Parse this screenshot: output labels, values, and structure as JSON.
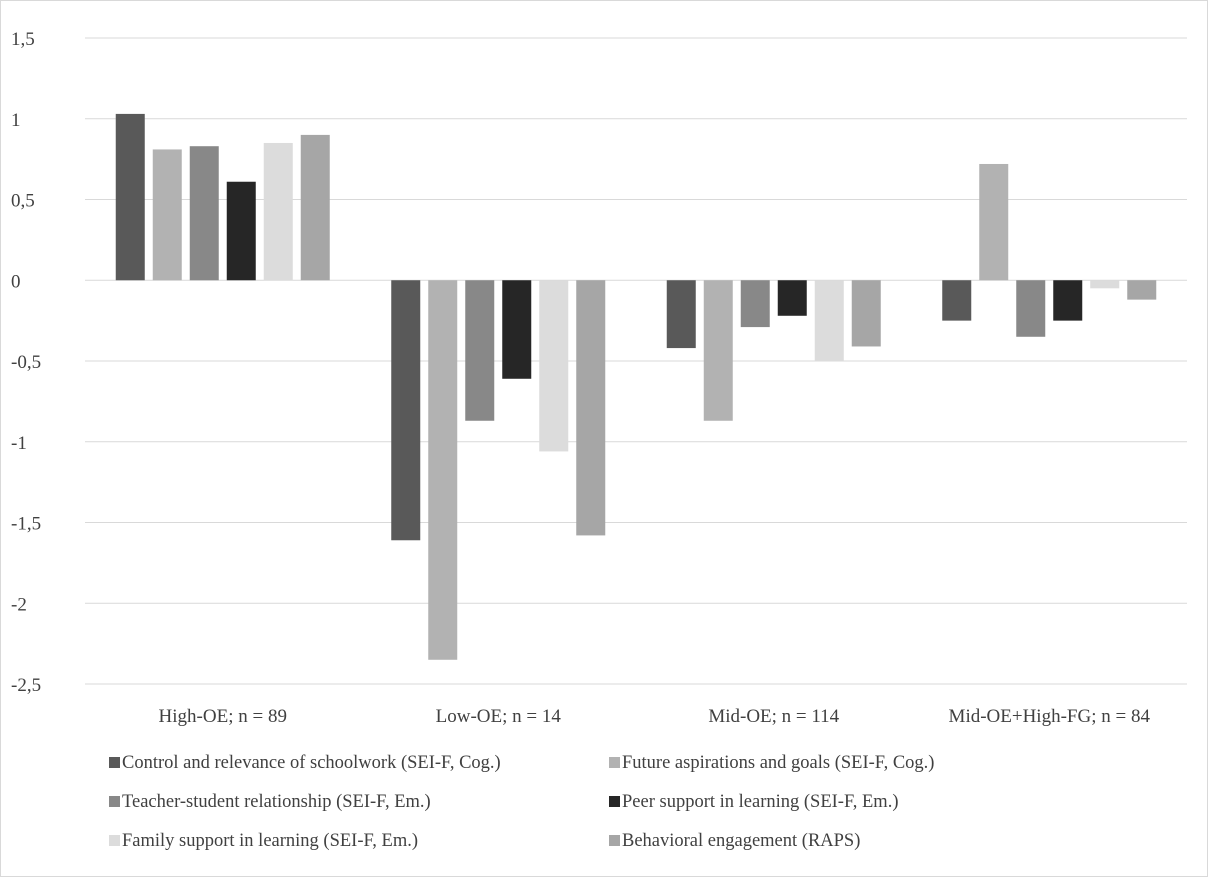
{
  "chart_data": {
    "type": "bar",
    "categories": [
      "High-OE; n = 89",
      "Low-OE; n = 14",
      "Mid-OE; n = 114",
      "Mid-OE+High-FG; n = 84"
    ],
    "ylim": [
      -2.5,
      1.5
    ],
    "yticks": [
      1.5,
      1,
      0.5,
      0,
      -0.5,
      -1,
      -1.5,
      -2,
      -2.5
    ],
    "ytick_labels": [
      "1,5",
      "1",
      "0,5",
      "0",
      "-0,5",
      "-1",
      "-1,5",
      "-2",
      "-2,5"
    ],
    "grid": true,
    "legend_position": "bottom",
    "series": [
      {
        "name": "Control and relevance of schoolwork (SEI-F, Cog.)",
        "color": "#595959",
        "values": [
          1.03,
          -1.61,
          -0.42,
          -0.25
        ]
      },
      {
        "name": "Future aspirations and goals (SEI-F, Cog.)",
        "color": "#b2b2b2",
        "values": [
          0.81,
          -2.35,
          -0.87,
          0.72
        ]
      },
      {
        "name": "Teacher-student relationship (SEI-F, Em.)",
        "color": "#888888",
        "values": [
          0.83,
          -0.87,
          -0.29,
          -0.35
        ]
      },
      {
        "name": "Peer support in learning (SEI-F, Em.)",
        "color": "#262626",
        "values": [
          0.61,
          -0.61,
          -0.22,
          -0.25
        ]
      },
      {
        "name": "Family support in learning (SEI-F, Em.)",
        "color": "#dcdcdc",
        "values": [
          0.85,
          -1.06,
          -0.5,
          -0.05
        ]
      },
      {
        "name": "Behavioral engagement (RAPS)",
        "color": "#a6a6a6",
        "values": [
          0.9,
          -1.58,
          -0.41,
          -0.12
        ]
      }
    ]
  }
}
